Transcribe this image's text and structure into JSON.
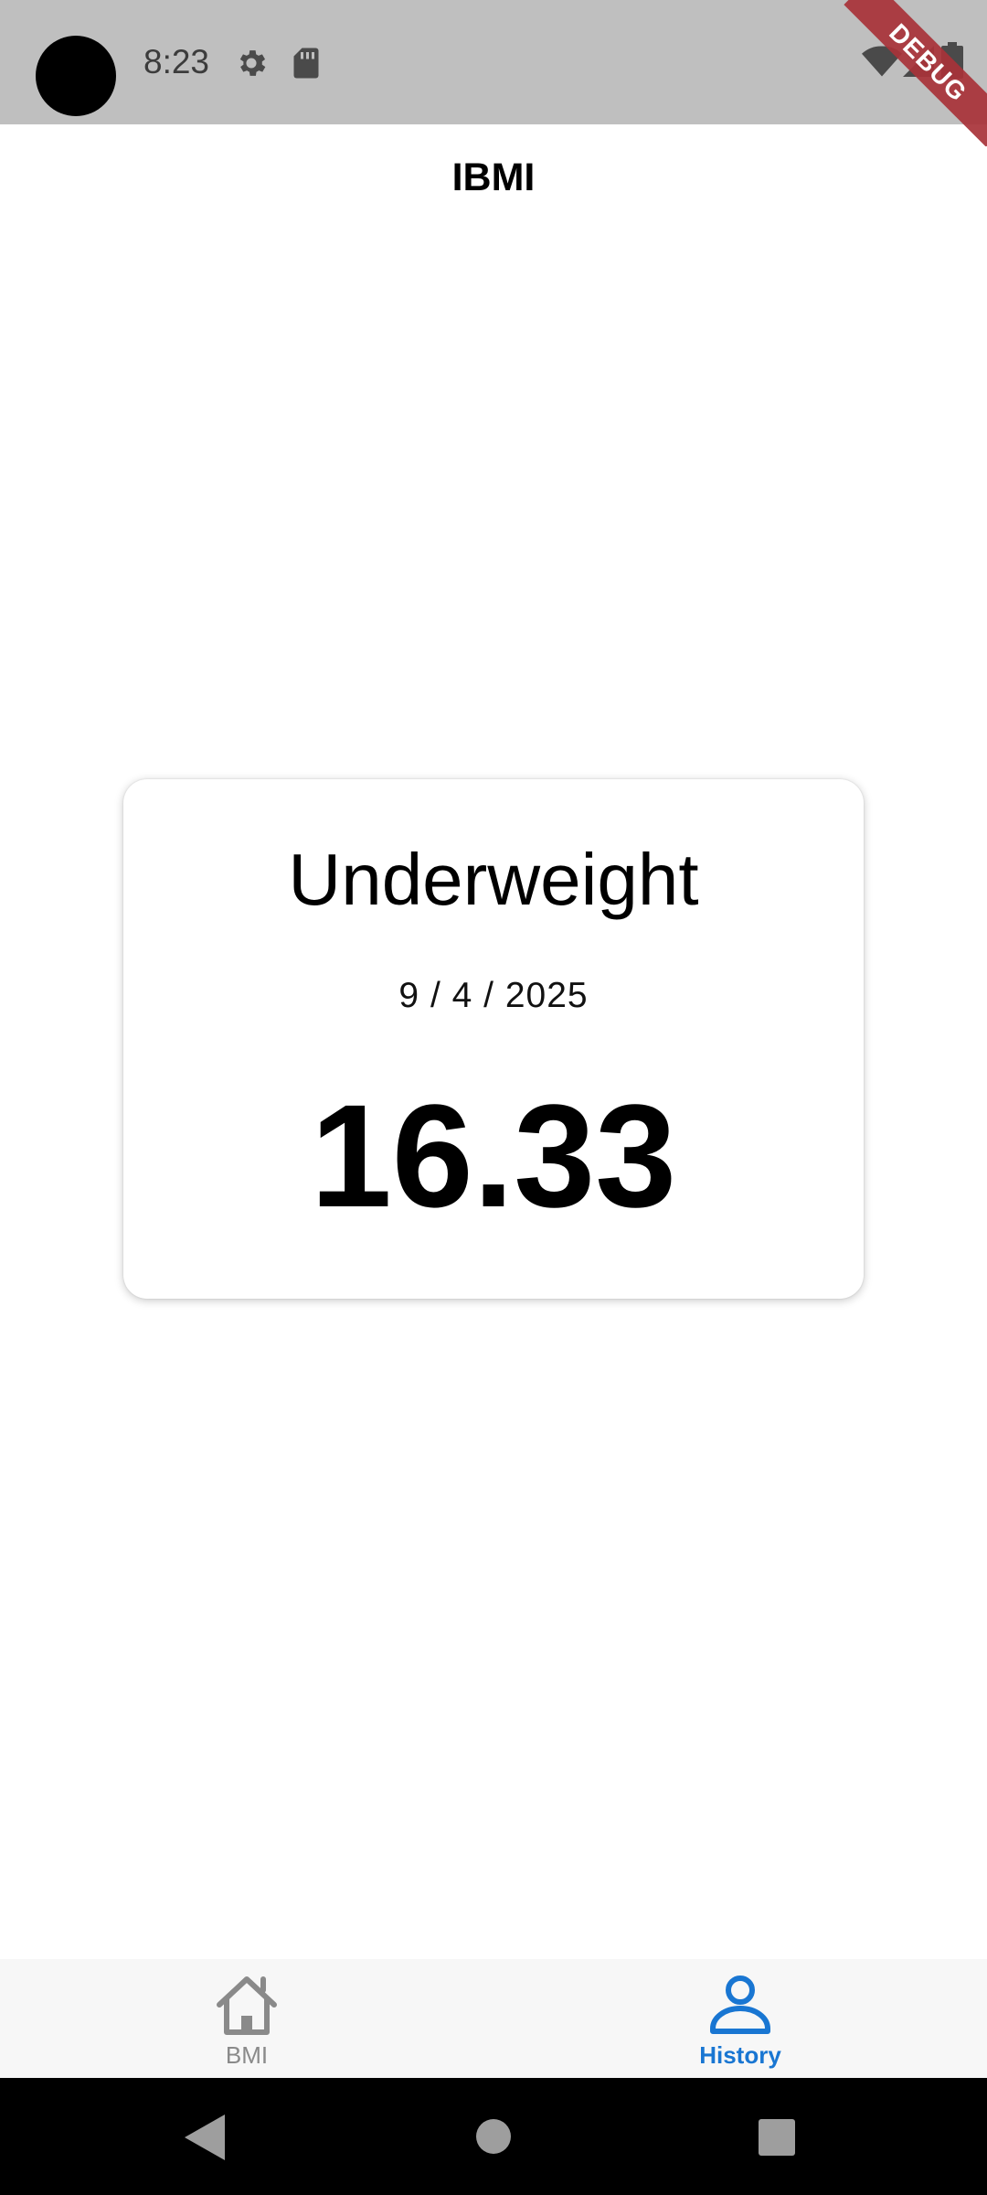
{
  "status_bar": {
    "time": "8:23",
    "icons": [
      "gear-icon",
      "sd-card-icon",
      "wifi-icon",
      "cell-signal-icon",
      "battery-icon"
    ],
    "debug_banner": "DEBUG"
  },
  "app_bar": {
    "title": "IBMI"
  },
  "result": {
    "category": "Underweight",
    "date": "9 / 4 / 2025",
    "bmi_value": "16.33"
  },
  "bottom_nav": {
    "items": [
      {
        "label": "BMI",
        "icon": "home-icon",
        "selected": false
      },
      {
        "label": "History",
        "icon": "person-icon",
        "selected": true
      }
    ],
    "active_color": "#1976d2",
    "inactive_color": "#8a8a8a"
  },
  "system_nav": {
    "buttons": [
      "back-icon",
      "home-circle-icon",
      "recents-icon"
    ]
  }
}
